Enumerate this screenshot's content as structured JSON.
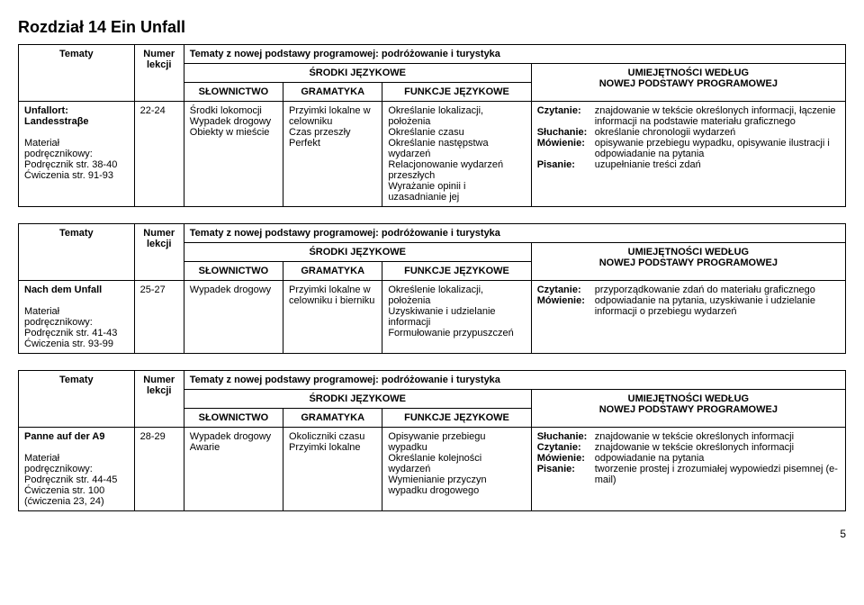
{
  "chapter_title": "Rozdział 14 Ein Unfall",
  "headers": {
    "tematy": "Tematy",
    "numer": "Numer lekcji",
    "srodki": "ŚRODKI JĘZYKOWE",
    "slownictwo": "SŁOWNICTWO",
    "gramatyka": "GRAMATYKA",
    "funkcje": "FUNKCJE JĘZYKOWE",
    "umiejetnosci_1": "UMIEJĘTNOŚCI WEDŁUG",
    "umiejetnosci_2": "NOWEJ PODSTAWY PROGRAMOWEJ"
  },
  "nowa_podstawa": "Tematy z nowej podstawy programowej: podróżowanie i turystyka",
  "material_label": "Materiał podręcznikowy:",
  "sections": [
    {
      "title": "Unfallort: Landesstraβe",
      "material_lines": [
        "Podręcznik str. 38-40",
        "Ćwiczenia str. 91-93"
      ],
      "numer": "22-24",
      "slownictwo": "Środki lokomocji\nWypadek drogowy\nObiekty w mieście",
      "gramatyka": "Przyimki lokalne w celowniku\nCzas przeszły Perfekt",
      "funkcje": "Określanie lokalizacji, położenia\nOkreślanie czasu\nOkreślanie następstwa wydarzeń\nRelacjonowanie wydarzeń przeszłych\nWyrażanie opinii i uzasadnianie jej",
      "skills": [
        {
          "label": "Czytanie:",
          "text": "znajdowanie w tekście określonych informacji, łączenie informacji na podstawie materiału graficznego"
        },
        {
          "label": "Słuchanie:",
          "text": "określanie chronologii wydarzeń"
        },
        {
          "label": "Mówienie:",
          "text": "opisywanie przebiegu wypadku, opisywanie ilustracji i odpowiadanie na pytania"
        },
        {
          "label": "Pisanie:",
          "text": "uzupełnianie treści zdań"
        }
      ]
    },
    {
      "title": "Nach dem Unfall",
      "material_lines": [
        "Podręcznik str. 41-43",
        "Ćwiczenia str. 93-99"
      ],
      "numer": "25-27",
      "slownictwo": "Wypadek drogowy",
      "gramatyka": "Przyimki lokalne w celowniku i bierniku",
      "funkcje": "Określenie lokalizacji, położenia\nUzyskiwanie i udzielanie informacji\nFormułowanie przypuszczeń",
      "skills": [
        {
          "label": "Czytanie:",
          "text": "przyporządkowanie zdań do materiału graficznego"
        },
        {
          "label": "Mówienie:",
          "text": "odpowiadanie na pytania, uzyskiwanie i udzielanie informacji o przebiegu wydarzeń"
        }
      ]
    },
    {
      "title": "Panne auf der A9",
      "material_lines": [
        "Podręcznik str. 44-45",
        "Ćwiczenia str. 100 (ćwiczenia 23, 24)"
      ],
      "numer": "28-29",
      "slownictwo": "Wypadek drogowy\nAwarie",
      "gramatyka": "Okoliczniki czasu\nPrzyimki lokalne",
      "funkcje": "Opisywanie przebiegu wypadku\nOkreślanie kolejności wydarzeń\nWymienianie przyczyn wypadku drogowego",
      "skills": [
        {
          "label": "Słuchanie:",
          "text": "znajdowanie w tekście określonych informacji"
        },
        {
          "label": "Czytanie:",
          "text": "znajdowanie w tekście określonych informacji"
        },
        {
          "label": "Mówienie:",
          "text": "odpowiadanie na pytania"
        },
        {
          "label": "Pisanie:",
          "text": "tworzenie prostej i zrozumiałej wypowiedzi pisemnej (e-mail)"
        }
      ]
    }
  ],
  "page_number": "5"
}
